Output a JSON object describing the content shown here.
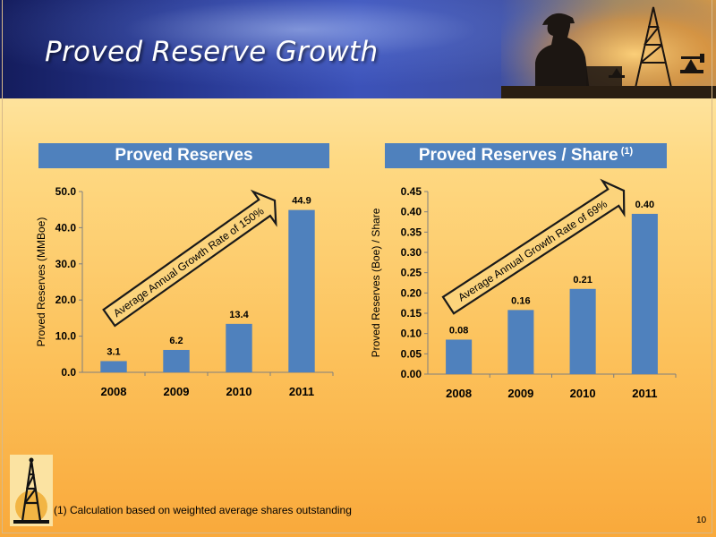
{
  "slide": {
    "title": "Proved Reserve Growth",
    "footnote": "(1) Calculation based on weighted average shares outstanding",
    "page_number": "10",
    "left_panel_header": "Proved Reserves",
    "right_panel_header": "Proved Reserves / Share",
    "right_panel_header_note": "(1)",
    "bar_color": "#4f81bd",
    "header_color": "#4f81bd"
  },
  "chart_data": [
    {
      "type": "bar",
      "categories": [
        "2008",
        "2009",
        "2010",
        "2011"
      ],
      "series": [
        {
          "values": [
            3.1,
            6.2,
            13.4,
            44.9
          ]
        }
      ],
      "data_labels": [
        "3.1",
        "6.2",
        "13.4",
        "44.9"
      ],
      "ylabel": "Proved Reserves (MMBoe)",
      "ylim": [
        0,
        50
      ],
      "yticks": [
        "0.0",
        "10.0",
        "20.0",
        "30.0",
        "40.0",
        "50.0"
      ],
      "annotation": "Average Annual Growth Rate of 150%",
      "grid": false
    },
    {
      "type": "bar",
      "categories": [
        "2008",
        "2009",
        "2010",
        "2011"
      ],
      "series": [
        {
          "values": [
            0.085,
            0.158,
            0.21,
            0.395
          ]
        }
      ],
      "data_labels": [
        "0.08",
        "0.16",
        "0.21",
        "0.40"
      ],
      "ylabel": "Proved Reserves (Boe) / Share",
      "ylim": [
        0,
        0.45
      ],
      "yticks": [
        "0.00",
        "0.05",
        "0.10",
        "0.15",
        "0.20",
        "0.25",
        "0.30",
        "0.35",
        "0.40",
        "0.45"
      ],
      "annotation": "Average Annual Growth Rate of 69%",
      "grid": false
    }
  ]
}
